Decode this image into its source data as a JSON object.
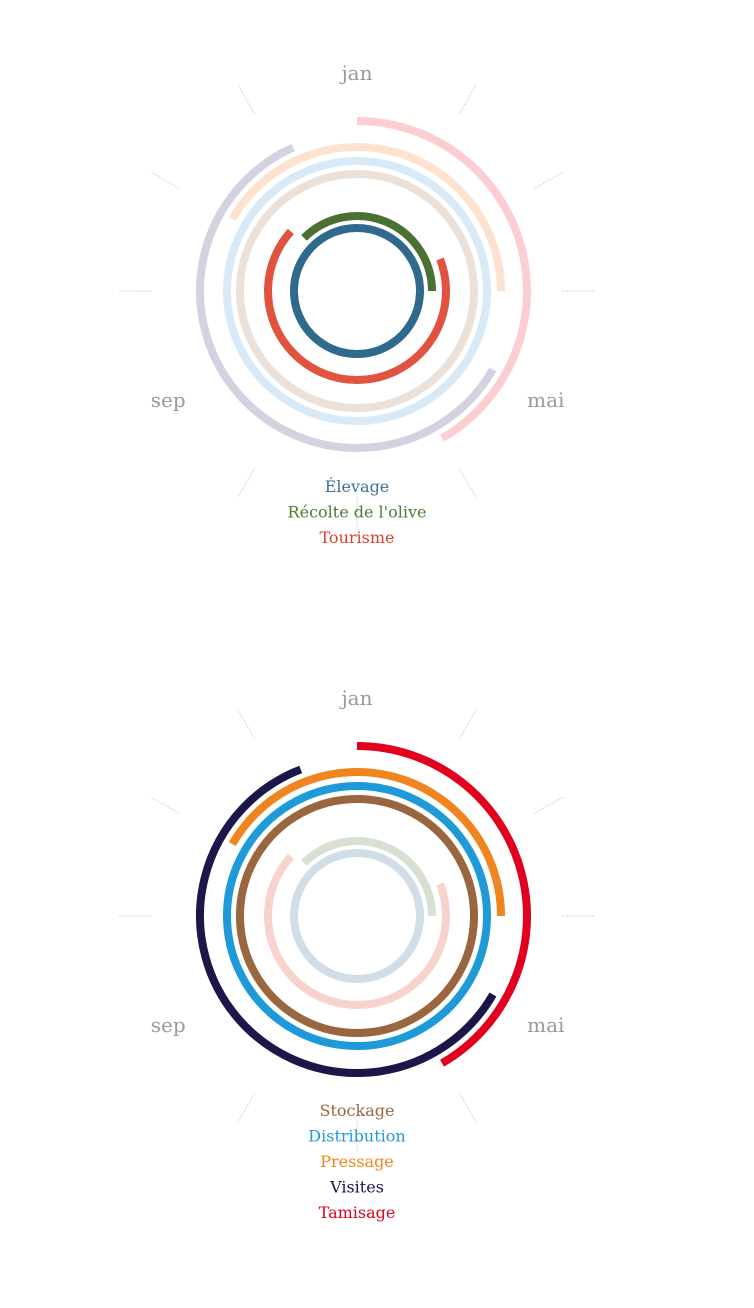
{
  "chart_data": [
    {
      "type": "radial-arc",
      "month_labels": [
        "jan",
        "mai",
        "sep"
      ],
      "months_total": 12,
      "arcs": [
        {
          "name": "Tourisme_outer",
          "ring": 6,
          "start": 0.0,
          "end": 5.0,
          "color": "#fccdd1"
        },
        {
          "name": "Visites_outer",
          "ring": 5,
          "start": 4.0,
          "end": 11.2,
          "color": "#d4d2e1"
        },
        {
          "name": "Pressage_outer",
          "ring": 4,
          "start": 10.0,
          "end": 3.0,
          "color": "#fde3cf"
        },
        {
          "name": "Distribution_outer",
          "ring": 3,
          "start": 0.0,
          "end": 12.0,
          "color": "#d8eaf7"
        },
        {
          "name": "Stockage_outer",
          "ring": 2,
          "start": 0.0,
          "end": 12.0,
          "color": "#ebe1d9"
        },
        {
          "name": "Récolte de l'olive",
          "ring": 1.05,
          "start": 10.5,
          "end": 3.0,
          "color": "#4a7131"
        },
        {
          "name": "Tourisme",
          "ring": 0.6,
          "start": 2.3,
          "end": 10.4,
          "color": "#e0533f"
        },
        {
          "name": "Élevage",
          "ring": 0,
          "start": 0.0,
          "end": 12.0,
          "color": "#2f6a8c"
        }
      ],
      "legend": [
        {
          "label": "Élevage",
          "color": "#3c6f96"
        },
        {
          "label": "Récolte de l'olive",
          "color": "#4c7d33"
        },
        {
          "label": "Tourisme",
          "color": "#d9412d"
        }
      ]
    },
    {
      "type": "radial-arc",
      "month_labels": [
        "jan",
        "mai",
        "sep"
      ],
      "months_total": 12,
      "arcs": [
        {
          "name": "Tamisage",
          "ring": 6,
          "start": 0.0,
          "end": 5.0,
          "color": "#e2001f"
        },
        {
          "name": "Visites",
          "ring": 5,
          "start": 4.0,
          "end": 11.3,
          "color": "#1c1749"
        },
        {
          "name": "Pressage",
          "ring": 4,
          "start": 10.0,
          "end": 3.0,
          "color": "#f0841f"
        },
        {
          "name": "Distribution",
          "ring": 3,
          "start": 0.0,
          "end": 12.0,
          "color": "#1f9ad9"
        },
        {
          "name": "Stockage",
          "ring": 2,
          "start": 0.0,
          "end": 12.0,
          "color": "#9a6640"
        },
        {
          "name": "Récolte_light",
          "ring": 1.05,
          "start": 10.5,
          "end": 3.0,
          "color": "#d7e0d2"
        },
        {
          "name": "Tourisme_light",
          "ring": 0.6,
          "start": 2.3,
          "end": 10.4,
          "color": "#f8d2cd"
        },
        {
          "name": "Élevage_light",
          "ring": 0,
          "start": 0.0,
          "end": 12.0,
          "color": "#d1dee7"
        }
      ],
      "legend": [
        {
          "label": "Stockage",
          "color": "#9a6640"
        },
        {
          "label": "Distribution",
          "color": "#1f9ad9"
        },
        {
          "label": "Pressage",
          "color": "#f0841f"
        },
        {
          "label": "Visites",
          "color": "#1c1749"
        },
        {
          "label": "Tamisage",
          "color": "#e2001f"
        }
      ]
    }
  ]
}
